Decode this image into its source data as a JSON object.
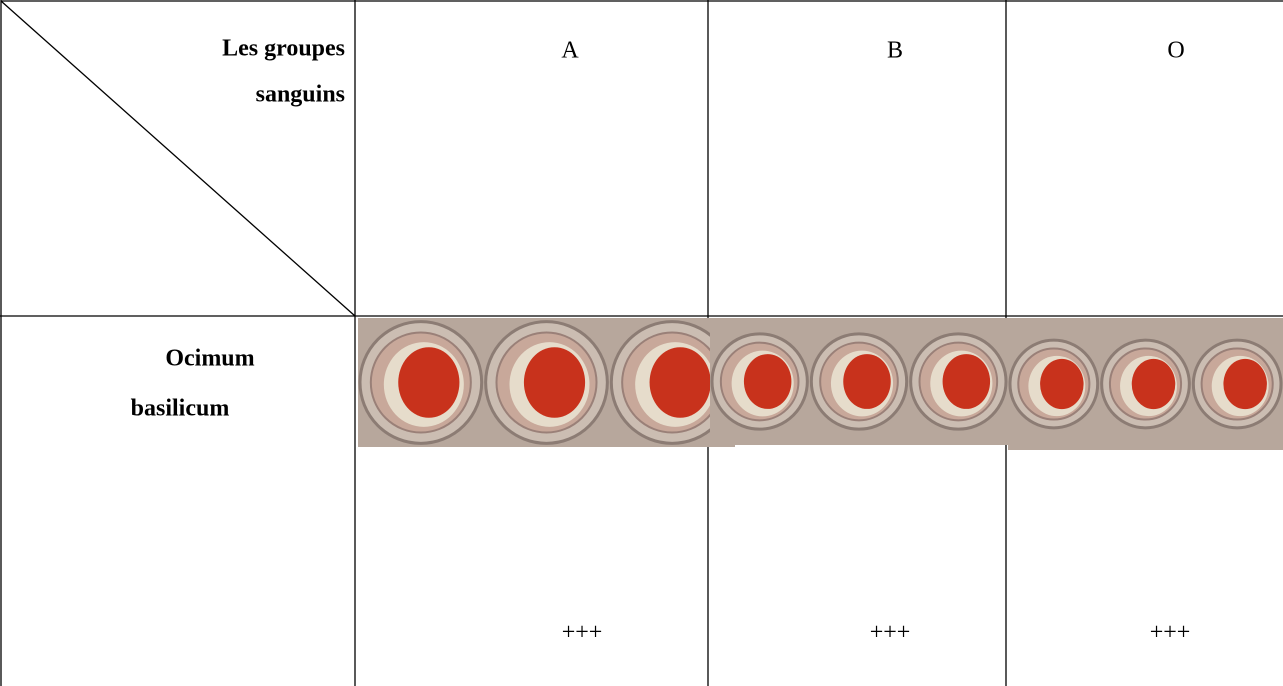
{
  "header": {
    "corner_top": "Les groupes",
    "corner_bottom": "sanguins",
    "columns": [
      "A",
      "B",
      "O"
    ]
  },
  "rows": [
    {
      "label": [
        "Ocimum",
        "basilicum"
      ],
      "results": [
        "+++",
        "+++",
        "+++"
      ]
    }
  ]
}
